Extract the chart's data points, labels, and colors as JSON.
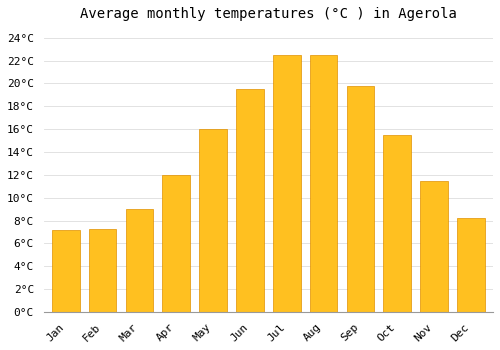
{
  "title": "Average monthly temperatures (°C ) in Agerola",
  "months": [
    "Jan",
    "Feb",
    "Mar",
    "Apr",
    "May",
    "Jun",
    "Jul",
    "Aug",
    "Sep",
    "Oct",
    "Nov",
    "Dec"
  ],
  "values": [
    7.2,
    7.3,
    9.0,
    12.0,
    16.0,
    19.5,
    22.5,
    22.5,
    19.8,
    15.5,
    11.5,
    8.2
  ],
  "bar_color_top": "#FFC020",
  "bar_color_bottom": "#FFB000",
  "bar_edge_color": "#E09000",
  "ylim": [
    0,
    25
  ],
  "yticks": [
    0,
    2,
    4,
    6,
    8,
    10,
    12,
    14,
    16,
    18,
    20,
    22,
    24
  ],
  "background_color": "#ffffff",
  "plot_bg_color": "#ffffff",
  "grid_color": "#dddddd",
  "title_fontsize": 10,
  "tick_fontsize": 8,
  "bar_width": 0.75
}
